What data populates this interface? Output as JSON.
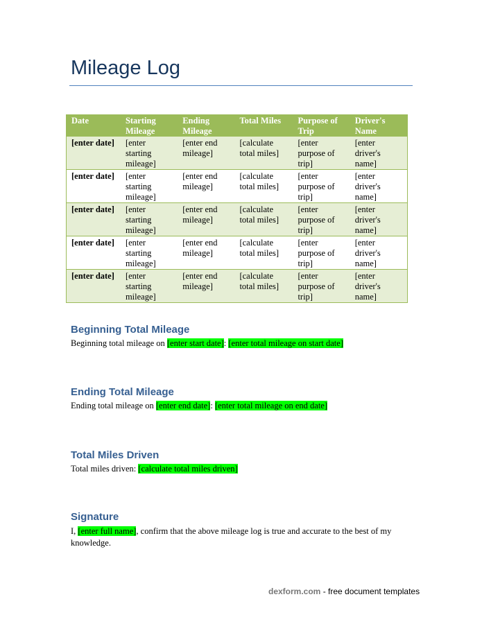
{
  "title": "Mileage Log",
  "table": {
    "headers": [
      "Date",
      "Starting Mileage",
      "Ending Mileage",
      "Total Miles",
      "Purpose of Trip",
      "Driver's Name"
    ],
    "rows": [
      [
        "[enter date]",
        "[enter starting mileage]",
        "[enter end mileage]",
        "[calculate total miles]",
        "[enter purpose of trip]",
        "[enter driver's name]"
      ],
      [
        "[enter date]",
        "[enter starting mileage]",
        "[enter end mileage]",
        "[calculate total miles]",
        "[enter purpose of trip]",
        "[enter driver's name]"
      ],
      [
        "[enter date]",
        "[enter starting mileage]",
        "[enter end mileage]",
        "[calculate total miles]",
        "[enter purpose of trip]",
        "[enter driver's name]"
      ],
      [
        "[enter date]",
        "[enter starting mileage]",
        "[enter end mileage]",
        "[calculate total miles]",
        "[enter purpose of trip]",
        "[enter driver's name]"
      ],
      [
        "[enter date]",
        "[enter starting mileage]",
        "[enter end mileage]",
        "[calculate total miles]",
        "[enter purpose of trip]",
        "[enter driver's name]"
      ]
    ]
  },
  "beginning": {
    "heading": "Beginning Total Mileage",
    "text": "Beginning total mileage on ",
    "field1": "[enter start date]",
    "sep": ": ",
    "field2": "[enter total mileage on start date]"
  },
  "ending": {
    "heading": "Ending Total Mileage",
    "text": "Ending total mileage on ",
    "field1": "[enter end date]",
    "sep": ": ",
    "field2": "[enter total mileage on end date]"
  },
  "total": {
    "heading": "Total Miles Driven",
    "text": "Total miles driven: ",
    "field1": "[calculate total miles driven]"
  },
  "signature": {
    "heading": "Signature",
    "pre": "I, ",
    "field1": "[enter full name]",
    "post": ", confirm that the above mileage log is true and accurate to the best of my knowledge."
  },
  "footer": {
    "brand": "dexform.com",
    "text": " - free document templates"
  },
  "colors": {
    "header_green": "#9bbb59",
    "row_shade": "#e6eed5",
    "highlight": "#00ff00",
    "heading_blue": "#365f91"
  }
}
